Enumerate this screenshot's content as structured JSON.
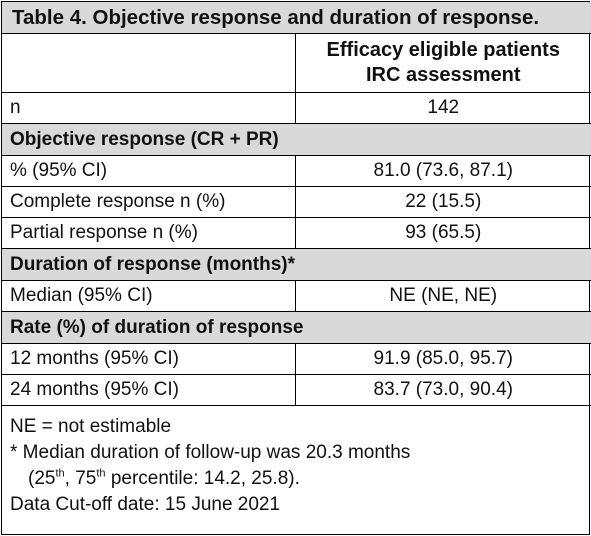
{
  "table": {
    "caption": "Table 4. Objective response and duration of response.",
    "header": {
      "col2_line1": "Efficacy eligible patients",
      "col2_line2": "IRC assessment"
    },
    "n_row": {
      "label": "n",
      "value": "142"
    },
    "objective_response": {
      "heading": "Objective response (CR + PR)",
      "rows": [
        {
          "label": "% (95% CI)",
          "value": "81.0 (73.6, 87.1)"
        },
        {
          "label": "Complete response n (%)",
          "value": "22 (15.5)"
        },
        {
          "label": "Partial response n (%)",
          "value": "93 (65.5)"
        }
      ]
    },
    "duration_of_response": {
      "heading": "Duration of response (months)*",
      "rows": [
        {
          "label": "Median (95% CI)",
          "value": "NE (NE, NE)"
        }
      ]
    },
    "rate_duration": {
      "heading": "Rate (%) of duration of response",
      "rows": [
        {
          "label": "12 months (95% CI)",
          "value": "91.9 (85.0, 95.7)"
        },
        {
          "label": "24 months (95% CI)",
          "value": "83.7 (73.0, 90.4)"
        }
      ]
    },
    "footnotes": {
      "ne": "NE = not estimable",
      "median_line1": "* Median duration of follow-up was 20.3 months",
      "pct_open": "(25",
      "pct_sup1": "th",
      "pct_mid": ", 75",
      "pct_sup2": "th",
      "pct_close": " percentile: 14.2, 25.8).",
      "cutoff": "Data Cut-off date: 15 June 2021"
    }
  }
}
